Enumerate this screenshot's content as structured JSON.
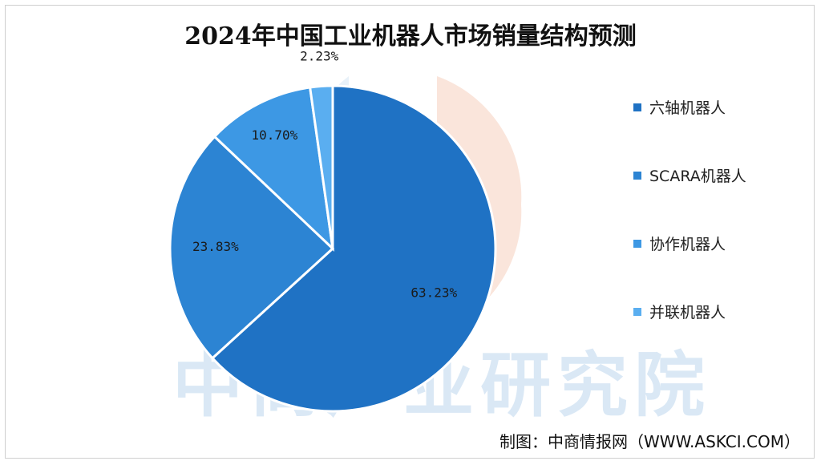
{
  "chart_data": {
    "type": "pie",
    "title": "2024年中国工业机器人市场销量结构预测",
    "categories": [
      "六轴机器人",
      "SCARA机器人",
      "协作机器人",
      "并联机器人"
    ],
    "values": [
      63.23,
      23.83,
      10.7,
      2.23
    ],
    "value_labels": [
      "63.23%",
      "23.83%",
      "10.70%",
      "2.23%"
    ],
    "colors": [
      "#1f72c4",
      "#2c84d3",
      "#3d98e4",
      "#5aaef0"
    ],
    "start_angle_deg": 0,
    "direction": "clockwise",
    "legend_position": "right"
  },
  "watermark": "中商产业研究院",
  "source": "制图：中商情报网（WWW.ASKCI.COM）"
}
